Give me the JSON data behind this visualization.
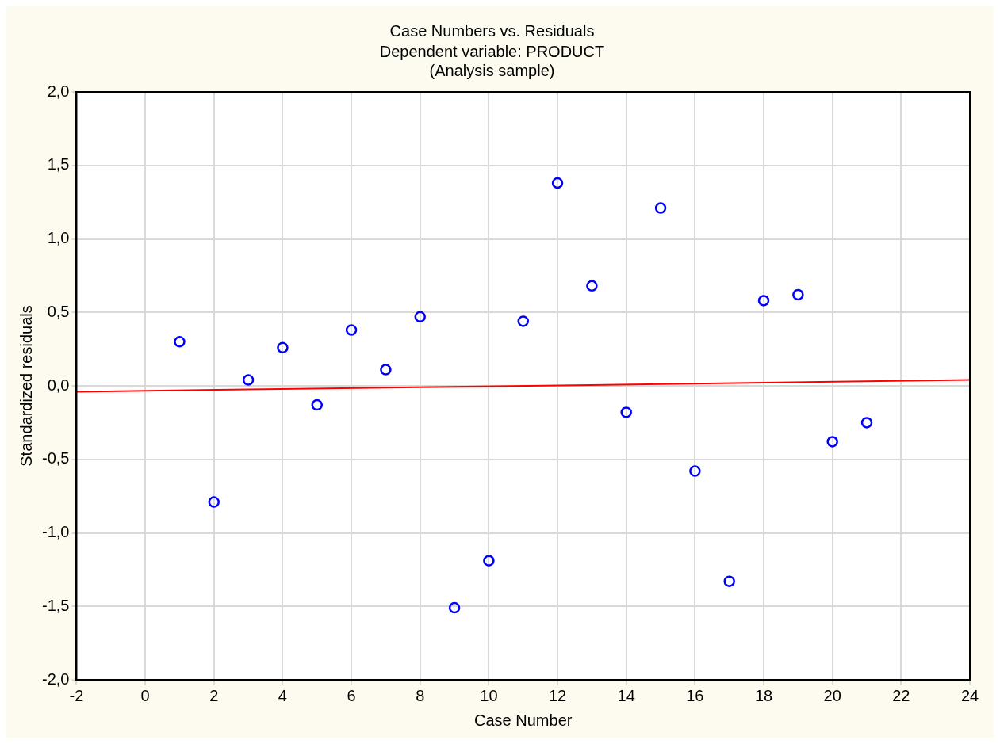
{
  "chart_data": {
    "type": "scatter",
    "title": "Case Numbers vs. Residuals",
    "subtitle": "Dependent variable: PRODUCT",
    "annotations": [
      "(Analysis sample)"
    ],
    "xlabel": "Case Number",
    "ylabel": "Standardized residuals",
    "xlim": [
      -2,
      24
    ],
    "xticks": [
      -2,
      0,
      2,
      4,
      6,
      8,
      10,
      12,
      14,
      16,
      18,
      20,
      22,
      24
    ],
    "ylim": [
      -2,
      2
    ],
    "yticks": [
      {
        "value": -2,
        "label": "-2,0"
      },
      {
        "value": -1.5,
        "label": "-1,5"
      },
      {
        "value": -1,
        "label": "-1,0"
      },
      {
        "value": -0.5,
        "label": "-0,5"
      },
      {
        "value": 0,
        "label": "0,0"
      },
      {
        "value": 0.5,
        "label": "0,5"
      },
      {
        "value": 1,
        "label": "1,0"
      },
      {
        "value": 1.5,
        "label": "1,5"
      },
      {
        "value": 2,
        "label": "2,0"
      }
    ],
    "grid": true,
    "series": [
      {
        "marker": "circle",
        "color": "#0000ff",
        "x": [
          1,
          2,
          3,
          4,
          5,
          6,
          7,
          8,
          9,
          10,
          11,
          12,
          13,
          14,
          15,
          16,
          17,
          18,
          19,
          20,
          21
        ],
        "values": [
          0.3,
          -0.79,
          0.04,
          0.26,
          -0.13,
          0.38,
          0.11,
          0.47,
          -1.51,
          -1.19,
          0.44,
          1.38,
          0.68,
          -0.18,
          1.21,
          -0.58,
          -1.33,
          0.58,
          0.62,
          -0.38,
          -0.25
        ]
      },
      {
        "type": "line",
        "marker": "none",
        "color": "#ff0000",
        "x": [
          -2,
          24
        ],
        "values": [
          -0.04,
          0.04
        ]
      }
    ]
  }
}
